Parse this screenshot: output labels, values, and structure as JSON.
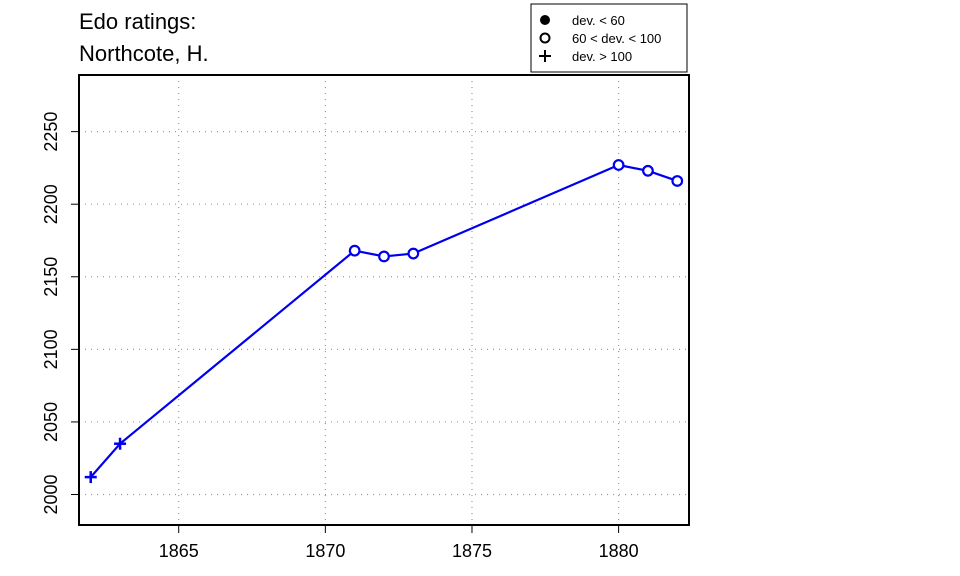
{
  "chart_data": {
    "type": "line",
    "title_lines": [
      "Edo ratings:",
      "Northcote, H."
    ],
    "xlabel": "",
    "ylabel": "",
    "xlim": [
      1861.6,
      1882.4
    ],
    "ylim": [
      1979,
      2289
    ],
    "x_ticks": [
      1865,
      1870,
      1875,
      1880
    ],
    "y_ticks": [
      2000,
      2050,
      2100,
      2150,
      2200,
      2250
    ],
    "grid": true,
    "line_color": "#0000ee",
    "legend": {
      "placement": "top-right",
      "entries": [
        {
          "marker": "filled-circle",
          "label": "dev. < 60"
        },
        {
          "marker": "open-circle",
          "label": "60 < dev. < 100"
        },
        {
          "marker": "plus",
          "label": "dev. > 100"
        }
      ]
    },
    "points": [
      {
        "x": 1862,
        "y": 2012,
        "marker": "plus"
      },
      {
        "x": 1863,
        "y": 2035,
        "marker": "plus"
      },
      {
        "x": 1871,
        "y": 2168,
        "marker": "open-circle"
      },
      {
        "x": 1872,
        "y": 2164,
        "marker": "open-circle"
      },
      {
        "x": 1873,
        "y": 2166,
        "marker": "open-circle"
      },
      {
        "x": 1880,
        "y": 2227,
        "marker": "open-circle"
      },
      {
        "x": 1881,
        "y": 2223,
        "marker": "open-circle"
      },
      {
        "x": 1882,
        "y": 2216,
        "marker": "open-circle"
      }
    ]
  }
}
